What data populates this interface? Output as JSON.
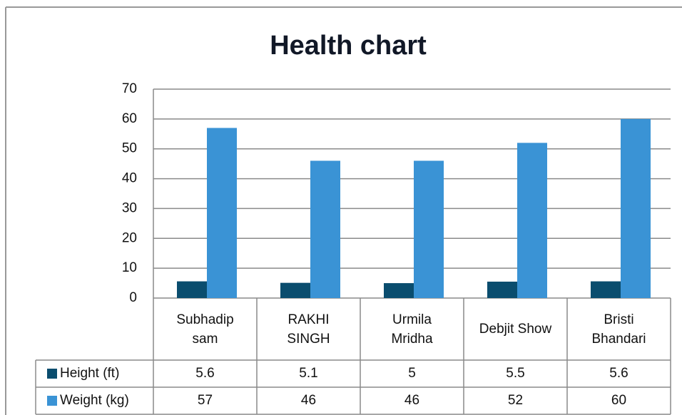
{
  "chart_data": {
    "type": "bar",
    "title": "Health chart",
    "categories": [
      "Subhadip sam",
      "RAKHI SINGH",
      "Urmila Mridha",
      "Debjit Show",
      "Bristi Bhandari"
    ],
    "series": [
      {
        "name": "Height (ft)",
        "color": "#0a4d6e",
        "values": [
          5.6,
          5.1,
          5,
          5.5,
          5.6
        ]
      },
      {
        "name": "Weight (kg)",
        "color": "#3a93d5",
        "values": [
          57,
          46,
          46,
          52,
          60
        ]
      }
    ],
    "ylim": [
      0,
      70
    ],
    "yticks": [
      0,
      10,
      20,
      30,
      40,
      50,
      60,
      70
    ],
    "grid": true,
    "data_table": true
  }
}
